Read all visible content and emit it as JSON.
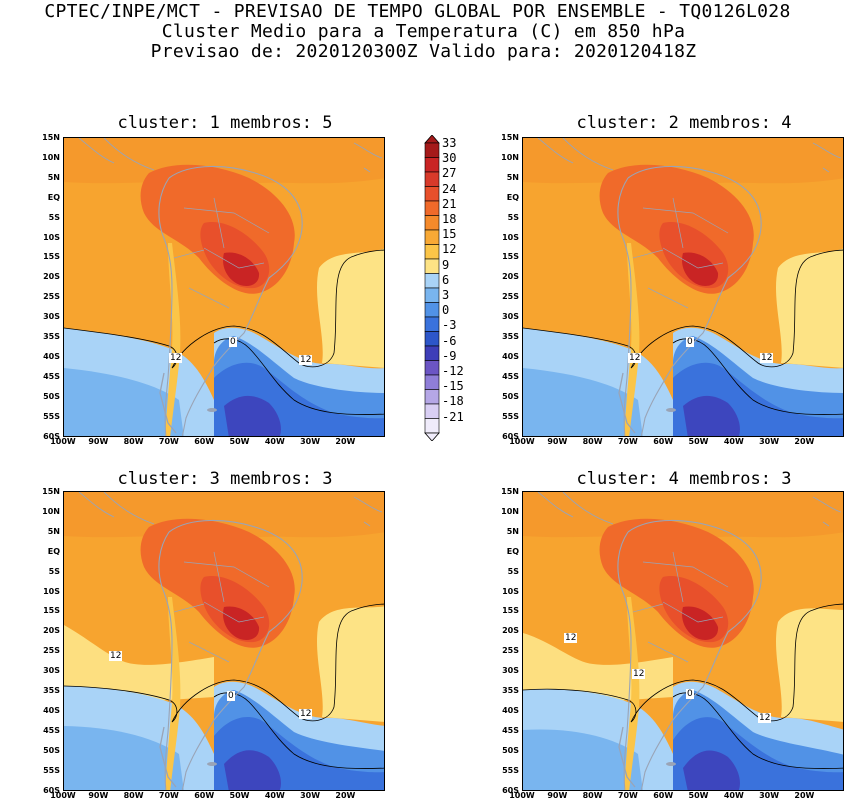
{
  "header": {
    "line1": "CPTEC/INPE/MCT - PREVISAO DE TEMPO GLOBAL POR ENSEMBLE - TQ0126L028",
    "line2": "Cluster Medio para a Temperatura (C) em 850 hPa",
    "line3": "Previsao de: 2020120300Z   Valido para: 2020120418Z"
  },
  "panels": [
    {
      "title": "cluster: 1  membros: 5",
      "labels": [
        "12",
        "0",
        "12"
      ]
    },
    {
      "title": "cluster: 2  membros: 4",
      "labels": [
        "12",
        "0",
        "12"
      ]
    },
    {
      "title": "cluster: 3  membros: 3",
      "labels": [
        "12",
        "0",
        "12"
      ]
    },
    {
      "title": "cluster: 4  membros: 3",
      "labels": [
        "12",
        "12",
        "0",
        "12"
      ]
    }
  ],
  "axes": {
    "lat_ticks": [
      "15N",
      "10N",
      "5N",
      "EQ",
      "5S",
      "10S",
      "15S",
      "20S",
      "25S",
      "30S",
      "35S",
      "40S",
      "45S",
      "50S",
      "55S",
      "60S"
    ],
    "lon_ticks": [
      "100W",
      "90W",
      "80W",
      "70W",
      "60W",
      "50W",
      "40W",
      "30W",
      "20W"
    ]
  },
  "colorbar": {
    "labels": [
      "33",
      "30",
      "27",
      "24",
      "21",
      "18",
      "15",
      "12",
      "9",
      "6",
      "3",
      "0",
      "-3",
      "-6",
      "-9",
      "-12",
      "-15",
      "-18",
      "-21"
    ],
    "colors": [
      "#a51a1a",
      "#c92424",
      "#d83a2a",
      "#e8502b",
      "#f06a2a",
      "#f58a2b",
      "#f8a935",
      "#fbc548",
      "#fde385",
      "#a9d3f7",
      "#79b5ef",
      "#5192e6",
      "#3a72dc",
      "#2d56c9",
      "#3e3eb8",
      "#6b55c4",
      "#8f7ed8",
      "#b5a7e6",
      "#d9cff4",
      "#f0ecfb"
    ]
  }
}
